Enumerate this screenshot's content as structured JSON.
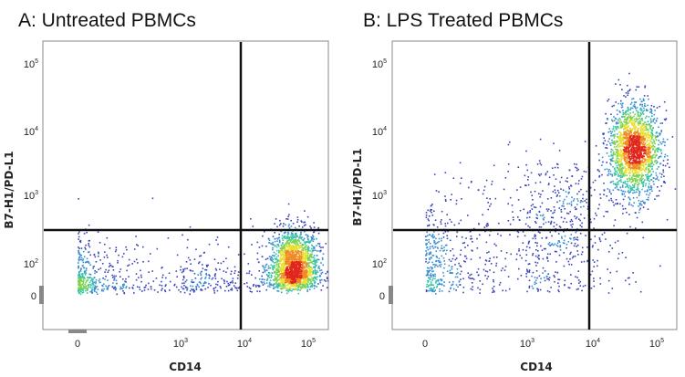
{
  "chart_data": [
    {
      "type": "scatter",
      "title": "A: Untreated PBMCs",
      "xlabel": "CD14",
      "ylabel": "B7-H1/PD-L1",
      "scale": "biexponential",
      "x_ticks": [
        {
          "value": 0,
          "base": "0",
          "exp": ""
        },
        {
          "value": 1000,
          "base": "10",
          "exp": "3"
        },
        {
          "value": 10000,
          "base": "10",
          "exp": "4"
        },
        {
          "value": 100000,
          "base": "10",
          "exp": "5"
        }
      ],
      "y_ticks": [
        {
          "value": 0,
          "base": "0",
          "exp": ""
        },
        {
          "value": 100,
          "base": "10",
          "exp": "2"
        },
        {
          "value": 1000,
          "base": "10",
          "exp": "3"
        },
        {
          "value": 10000,
          "base": "10",
          "exp": "4"
        },
        {
          "value": 100000,
          "base": "10",
          "exp": "5"
        }
      ],
      "quadrant_gate": {
        "x": 10000,
        "y": 300
      },
      "populations": [
        {
          "x": 60000,
          "y": 90,
          "count": 1900,
          "spread_x": 0.18,
          "spread_y": 0.28
        },
        {
          "x": 300,
          "y": 50,
          "count": 700,
          "spread_x": 0.95,
          "spread_y": 0.35
        }
      ],
      "color_scale": [
        "#3a45b8",
        "#3b8fd0",
        "#36c3a6",
        "#7ad24e",
        "#e8e02f",
        "#f08a24",
        "#e0261c"
      ],
      "grid": false,
      "legend": "none"
    },
    {
      "type": "scatter",
      "title": "B: LPS Treated PBMCs",
      "xlabel": "CD14",
      "ylabel": "B7-H1/PD-L1",
      "scale": "biexponential",
      "x_ticks": [
        {
          "value": 0,
          "base": "0",
          "exp": ""
        },
        {
          "value": 1000,
          "base": "10",
          "exp": "3"
        },
        {
          "value": 10000,
          "base": "10",
          "exp": "4"
        },
        {
          "value": 100000,
          "base": "10",
          "exp": "5"
        }
      ],
      "y_ticks": [
        {
          "value": 0,
          "base": "0",
          "exp": ""
        },
        {
          "value": 100,
          "base": "10",
          "exp": "2"
        },
        {
          "value": 1000,
          "base": "10",
          "exp": "3"
        },
        {
          "value": 10000,
          "base": "10",
          "exp": "4"
        },
        {
          "value": 100000,
          "base": "10",
          "exp": "5"
        }
      ],
      "quadrant_gate": {
        "x": 10000,
        "y": 300
      },
      "populations": [
        {
          "x": 50000,
          "y": 5000,
          "count": 1900,
          "spread_x": 0.2,
          "spread_y": 0.35
        },
        {
          "x": 500,
          "y": 100,
          "count": 650,
          "spread_x": 0.8,
          "spread_y": 0.45
        },
        {
          "x": 3000,
          "y": 700,
          "count": 350,
          "spread_x": 0.5,
          "spread_y": 0.4
        }
      ],
      "color_scale": [
        "#3a45b8",
        "#3b8fd0",
        "#36c3a6",
        "#7ad24e",
        "#e8e02f",
        "#f08a24",
        "#e0261c"
      ],
      "grid": false,
      "legend": "none"
    }
  ]
}
